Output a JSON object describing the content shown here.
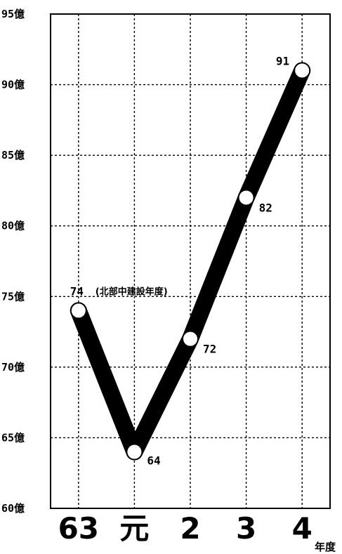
{
  "chart_data": {
    "type": "line",
    "categories": [
      "63",
      "元",
      "2",
      "3",
      "4"
    ],
    "x_unit_label": "年度",
    "values": [
      74,
      64,
      72,
      82,
      91
    ],
    "value_labels": [
      "74",
      "64",
      "72",
      "82",
      "91"
    ],
    "annotations": [
      {
        "category_index": 0,
        "text": "(北部中建設年度)"
      }
    ],
    "y_ticks": [
      "60億",
      "65億",
      "70億",
      "75億",
      "80億",
      "85億",
      "90億",
      "95億"
    ],
    "y_tick_values": [
      60,
      65,
      70,
      75,
      80,
      85,
      90,
      95
    ],
    "ylim": [
      60,
      95
    ],
    "grid": true,
    "line_color": "#000000",
    "marker_fill": "#ffffff",
    "marker_stroke": "#000000"
  }
}
